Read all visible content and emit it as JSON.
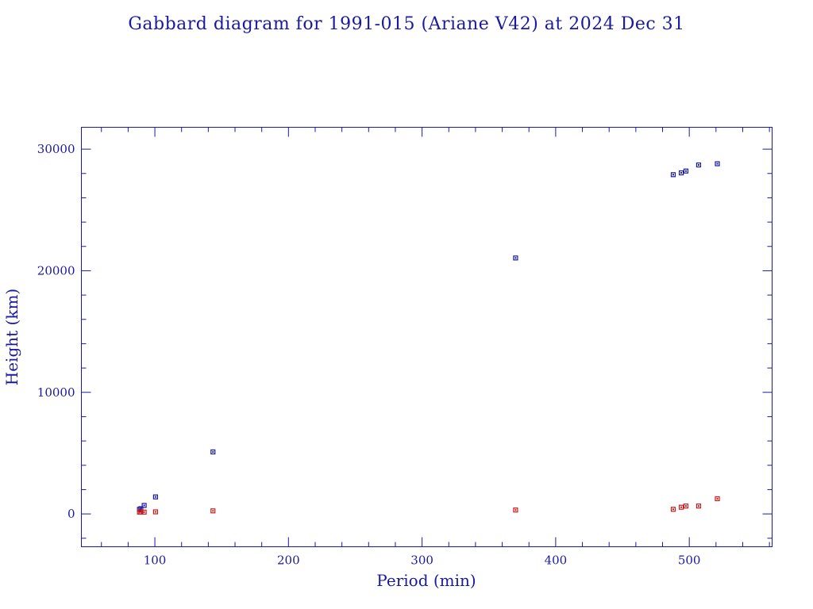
{
  "chart_data": {
    "type": "scatter",
    "title": "Gabbard diagram for 1991-015 (Ariane V42) at 2024 Dec 31",
    "xlabel": "Period (min)",
    "ylabel": "Height (km)",
    "xlim": [
      45,
      562
    ],
    "ylim": [
      -2700,
      31800
    ],
    "x_major_ticks": [
      100,
      200,
      300,
      400,
      500
    ],
    "x_minor_step": 20,
    "y_major_ticks": [
      0,
      10000,
      20000,
      30000
    ],
    "y_minor_step": 2000,
    "grid": false,
    "legend": "none",
    "series": [
      {
        "color": "#1a1aa0",
        "points": [
          {
            "x": 88.5,
            "y": 380
          },
          {
            "x": 89.5,
            "y": 430
          },
          {
            "x": 92,
            "y": 700
          },
          {
            "x": 100.5,
            "y": 1400
          },
          {
            "x": 143.5,
            "y": 5100
          },
          {
            "x": 370,
            "y": 21050
          },
          {
            "x": 488,
            "y": 27900
          },
          {
            "x": 494,
            "y": 28050
          },
          {
            "x": 497.5,
            "y": 28200
          },
          {
            "x": 507,
            "y": 28700
          },
          {
            "x": 521,
            "y": 28800
          }
        ]
      },
      {
        "color": "#cc1a1a",
        "points": [
          {
            "x": 88.5,
            "y": 150
          },
          {
            "x": 89.5,
            "y": 170
          },
          {
            "x": 92,
            "y": 150
          },
          {
            "x": 100.5,
            "y": 170
          },
          {
            "x": 143.5,
            "y": 250
          },
          {
            "x": 370,
            "y": 320
          },
          {
            "x": 488,
            "y": 380
          },
          {
            "x": 494,
            "y": 550
          },
          {
            "x": 497.5,
            "y": 650
          },
          {
            "x": 507,
            "y": 650
          },
          {
            "x": 521,
            "y": 1250
          }
        ]
      }
    ]
  }
}
